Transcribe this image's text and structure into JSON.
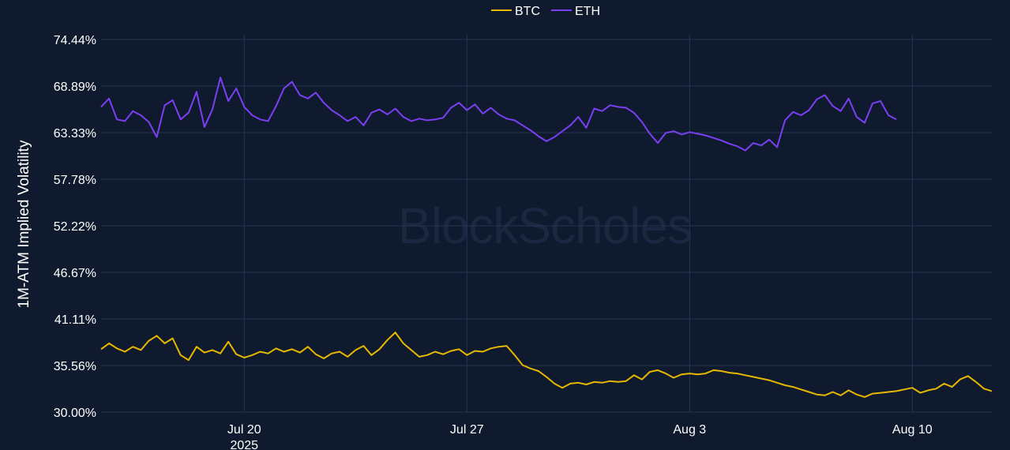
{
  "watermark": "BlockScholes",
  "chart_data": {
    "type": "line",
    "ylabel": "1M-ATM Implied Volatility",
    "ylim": [
      30.0,
      74.44
    ],
    "yticks": [
      "74.44%",
      "68.89%",
      "63.33%",
      "57.78%",
      "52.22%",
      "46.67%",
      "41.11%",
      "35.56%",
      "30.00%"
    ],
    "ytick_values": [
      74.44,
      68.89,
      63.33,
      57.78,
      52.22,
      46.67,
      41.11,
      35.56,
      30.0
    ],
    "xlim": [
      "2025-07-15T12:00",
      "2025-08-12T12:00"
    ],
    "xticks": [
      {
        "date": "2025-07-20",
        "label": "Jul 20",
        "sublabel": "2025"
      },
      {
        "date": "2025-07-27",
        "label": "Jul 27",
        "sublabel": ""
      },
      {
        "date": "2025-08-03",
        "label": "Aug 3",
        "sublabel": ""
      },
      {
        "date": "2025-08-10",
        "label": "Aug 10",
        "sublabel": ""
      }
    ],
    "grid": true,
    "legend_position": "top-center",
    "series": [
      {
        "name": "BTC",
        "color": "#e6b800",
        "points": [
          [
            "2025-07-15T12:00",
            37.5
          ],
          [
            "2025-07-15T18:00",
            38.2
          ],
          [
            "2025-07-16T00:00",
            37.6
          ],
          [
            "2025-07-16T06:00",
            37.2
          ],
          [
            "2025-07-16T12:00",
            37.8
          ],
          [
            "2025-07-16T18:00",
            37.4
          ],
          [
            "2025-07-17T00:00",
            38.5
          ],
          [
            "2025-07-17T06:00",
            39.1
          ],
          [
            "2025-07-17T12:00",
            38.2
          ],
          [
            "2025-07-17T18:00",
            38.8
          ],
          [
            "2025-07-18T00:00",
            36.8
          ],
          [
            "2025-07-18T06:00",
            36.2
          ],
          [
            "2025-07-18T12:00",
            37.8
          ],
          [
            "2025-07-18T18:00",
            37.1
          ],
          [
            "2025-07-19T00:00",
            37.4
          ],
          [
            "2025-07-19T06:00",
            37.0
          ],
          [
            "2025-07-19T12:00",
            38.4
          ],
          [
            "2025-07-19T18:00",
            36.9
          ],
          [
            "2025-07-20T00:00",
            36.5
          ],
          [
            "2025-07-20T06:00",
            36.8
          ],
          [
            "2025-07-20T12:00",
            37.2
          ],
          [
            "2025-07-20T18:00",
            37.0
          ],
          [
            "2025-07-21T00:00",
            37.6
          ],
          [
            "2025-07-21T06:00",
            37.2
          ],
          [
            "2025-07-21T12:00",
            37.5
          ],
          [
            "2025-07-21T18:00",
            37.1
          ],
          [
            "2025-07-22T00:00",
            37.8
          ],
          [
            "2025-07-22T06:00",
            36.9
          ],
          [
            "2025-07-22T12:00",
            36.4
          ],
          [
            "2025-07-22T18:00",
            37.0
          ],
          [
            "2025-07-23T00:00",
            37.2
          ],
          [
            "2025-07-23T06:00",
            36.6
          ],
          [
            "2025-07-23T12:00",
            37.4
          ],
          [
            "2025-07-23T18:00",
            37.9
          ],
          [
            "2025-07-24T00:00",
            36.8
          ],
          [
            "2025-07-24T06:00",
            37.5
          ],
          [
            "2025-07-24T12:00",
            38.6
          ],
          [
            "2025-07-24T18:00",
            39.5
          ],
          [
            "2025-07-25T00:00",
            38.2
          ],
          [
            "2025-07-25T06:00",
            37.4
          ],
          [
            "2025-07-25T12:00",
            36.6
          ],
          [
            "2025-07-25T18:00",
            36.8
          ],
          [
            "2025-07-26T00:00",
            37.2
          ],
          [
            "2025-07-26T06:00",
            36.9
          ],
          [
            "2025-07-26T12:00",
            37.3
          ],
          [
            "2025-07-26T18:00",
            37.5
          ],
          [
            "2025-07-27T00:00",
            36.8
          ],
          [
            "2025-07-27T06:00",
            37.3
          ],
          [
            "2025-07-27T12:00",
            37.2
          ],
          [
            "2025-07-27T18:00",
            37.6
          ],
          [
            "2025-07-28T00:00",
            37.8
          ],
          [
            "2025-07-28T06:00",
            37.9
          ],
          [
            "2025-07-28T12:00",
            36.8
          ],
          [
            "2025-07-28T18:00",
            35.6
          ],
          [
            "2025-07-29T00:00",
            35.2
          ],
          [
            "2025-07-29T06:00",
            34.9
          ],
          [
            "2025-07-29T12:00",
            34.2
          ],
          [
            "2025-07-29T18:00",
            33.4
          ],
          [
            "2025-07-30T00:00",
            32.9
          ],
          [
            "2025-07-30T06:00",
            33.4
          ],
          [
            "2025-07-30T12:00",
            33.5
          ],
          [
            "2025-07-30T18:00",
            33.3
          ],
          [
            "2025-07-31T00:00",
            33.6
          ],
          [
            "2025-07-31T06:00",
            33.5
          ],
          [
            "2025-07-31T12:00",
            33.7
          ],
          [
            "2025-07-31T18:00",
            33.6
          ],
          [
            "2025-08-01T00:00",
            33.7
          ],
          [
            "2025-08-01T06:00",
            34.4
          ],
          [
            "2025-08-01T12:00",
            33.9
          ],
          [
            "2025-08-01T18:00",
            34.8
          ],
          [
            "2025-08-02T00:00",
            35.0
          ],
          [
            "2025-08-02T06:00",
            34.6
          ],
          [
            "2025-08-02T12:00",
            34.1
          ],
          [
            "2025-08-02T18:00",
            34.5
          ],
          [
            "2025-08-03T00:00",
            34.6
          ],
          [
            "2025-08-03T06:00",
            34.5
          ],
          [
            "2025-08-03T12:00",
            34.6
          ],
          [
            "2025-08-03T18:00",
            35.0
          ],
          [
            "2025-08-04T00:00",
            34.9
          ],
          [
            "2025-08-04T06:00",
            34.7
          ],
          [
            "2025-08-04T12:00",
            34.6
          ],
          [
            "2025-08-04T18:00",
            34.4
          ],
          [
            "2025-08-05T00:00",
            34.2
          ],
          [
            "2025-08-05T06:00",
            34.0
          ],
          [
            "2025-08-05T12:00",
            33.8
          ],
          [
            "2025-08-05T18:00",
            33.5
          ],
          [
            "2025-08-06T00:00",
            33.2
          ],
          [
            "2025-08-06T06:00",
            33.0
          ],
          [
            "2025-08-06T12:00",
            32.7
          ],
          [
            "2025-08-06T18:00",
            32.4
          ],
          [
            "2025-08-07T00:00",
            32.1
          ],
          [
            "2025-08-07T06:00",
            32.0
          ],
          [
            "2025-08-07T12:00",
            32.4
          ],
          [
            "2025-08-07T18:00",
            32.0
          ],
          [
            "2025-08-08T00:00",
            32.6
          ],
          [
            "2025-08-08T06:00",
            32.1
          ],
          [
            "2025-08-08T12:00",
            31.8
          ],
          [
            "2025-08-08T18:00",
            32.2
          ],
          [
            "2025-08-09T00:00",
            32.3
          ],
          [
            "2025-08-09T06:00",
            32.4
          ],
          [
            "2025-08-09T12:00",
            32.5
          ],
          [
            "2025-08-09T18:00",
            32.7
          ],
          [
            "2025-08-10T00:00",
            32.9
          ],
          [
            "2025-08-10T06:00",
            32.3
          ],
          [
            "2025-08-10T12:00",
            32.6
          ],
          [
            "2025-08-10T18:00",
            32.8
          ],
          [
            "2025-08-11T00:00",
            33.4
          ],
          [
            "2025-08-11T06:00",
            33.0
          ],
          [
            "2025-08-11T12:00",
            33.9
          ],
          [
            "2025-08-11T18:00",
            34.3
          ],
          [
            "2025-08-12T00:00",
            33.6
          ],
          [
            "2025-08-12T06:00",
            32.8
          ],
          [
            "2025-08-12T12:00",
            32.5
          ]
        ]
      },
      {
        "name": "ETH",
        "color": "#7b3ff2",
        "points": [
          [
            "2025-07-15T12:00",
            66.4
          ],
          [
            "2025-07-15T18:00",
            67.4
          ],
          [
            "2025-07-16T00:00",
            64.9
          ],
          [
            "2025-07-16T06:00",
            64.7
          ],
          [
            "2025-07-16T12:00",
            65.9
          ],
          [
            "2025-07-16T18:00",
            65.4
          ],
          [
            "2025-07-17T00:00",
            64.6
          ],
          [
            "2025-07-17T06:00",
            62.8
          ],
          [
            "2025-07-17T12:00",
            66.6
          ],
          [
            "2025-07-17T18:00",
            67.2
          ],
          [
            "2025-07-18T00:00",
            64.9
          ],
          [
            "2025-07-18T06:00",
            65.7
          ],
          [
            "2025-07-18T12:00",
            68.2
          ],
          [
            "2025-07-18T18:00",
            64.0
          ],
          [
            "2025-07-19T00:00",
            66.1
          ],
          [
            "2025-07-19T06:00",
            69.9
          ],
          [
            "2025-07-19T12:00",
            67.1
          ],
          [
            "2025-07-19T18:00",
            68.6
          ],
          [
            "2025-07-20T00:00",
            66.4
          ],
          [
            "2025-07-20T06:00",
            65.4
          ],
          [
            "2025-07-20T12:00",
            64.9
          ],
          [
            "2025-07-20T18:00",
            64.7
          ],
          [
            "2025-07-21T00:00",
            66.5
          ],
          [
            "2025-07-21T06:00",
            68.6
          ],
          [
            "2025-07-21T12:00",
            69.4
          ],
          [
            "2025-07-21T18:00",
            67.8
          ],
          [
            "2025-07-22T00:00",
            67.4
          ],
          [
            "2025-07-22T06:00",
            68.1
          ],
          [
            "2025-07-22T12:00",
            66.9
          ],
          [
            "2025-07-22T18:00",
            66.0
          ],
          [
            "2025-07-23T00:00",
            65.4
          ],
          [
            "2025-07-23T06:00",
            64.7
          ],
          [
            "2025-07-23T12:00",
            65.2
          ],
          [
            "2025-07-23T18:00",
            64.2
          ],
          [
            "2025-07-24T00:00",
            65.7
          ],
          [
            "2025-07-24T06:00",
            66.1
          ],
          [
            "2025-07-24T12:00",
            65.5
          ],
          [
            "2025-07-24T18:00",
            66.2
          ],
          [
            "2025-07-25T00:00",
            65.2
          ],
          [
            "2025-07-25T06:00",
            64.7
          ],
          [
            "2025-07-25T12:00",
            65.0
          ],
          [
            "2025-07-25T18:00",
            64.8
          ],
          [
            "2025-07-26T00:00",
            64.9
          ],
          [
            "2025-07-26T06:00",
            65.1
          ],
          [
            "2025-07-26T12:00",
            66.3
          ],
          [
            "2025-07-26T18:00",
            66.9
          ],
          [
            "2025-07-27T00:00",
            66.0
          ],
          [
            "2025-07-27T06:00",
            66.7
          ],
          [
            "2025-07-27T12:00",
            65.6
          ],
          [
            "2025-07-27T18:00",
            66.3
          ],
          [
            "2025-07-28T00:00",
            65.5
          ],
          [
            "2025-07-28T06:00",
            65.0
          ],
          [
            "2025-07-28T12:00",
            64.8
          ],
          [
            "2025-07-28T18:00",
            64.2
          ],
          [
            "2025-07-29T00:00",
            63.6
          ],
          [
            "2025-07-29T06:00",
            62.9
          ],
          [
            "2025-07-29T12:00",
            62.3
          ],
          [
            "2025-07-29T18:00",
            62.8
          ],
          [
            "2025-07-30T00:00",
            63.5
          ],
          [
            "2025-07-30T06:00",
            64.2
          ],
          [
            "2025-07-30T12:00",
            65.2
          ],
          [
            "2025-07-30T18:00",
            63.9
          ],
          [
            "2025-07-31T00:00",
            66.2
          ],
          [
            "2025-07-31T06:00",
            65.9
          ],
          [
            "2025-07-31T12:00",
            66.6
          ],
          [
            "2025-07-31T18:00",
            66.4
          ],
          [
            "2025-08-01T00:00",
            66.3
          ],
          [
            "2025-08-01T06:00",
            65.7
          ],
          [
            "2025-08-01T12:00",
            64.6
          ],
          [
            "2025-08-01T18:00",
            63.2
          ],
          [
            "2025-08-02T00:00",
            62.1
          ],
          [
            "2025-08-02T06:00",
            63.3
          ],
          [
            "2025-08-02T12:00",
            63.5
          ],
          [
            "2025-08-02T18:00",
            63.1
          ],
          [
            "2025-08-03T00:00",
            63.4
          ],
          [
            "2025-08-03T06:00",
            63.2
          ],
          [
            "2025-08-03T12:00",
            63.0
          ],
          [
            "2025-08-03T18:00",
            62.7
          ],
          [
            "2025-08-04T00:00",
            62.4
          ],
          [
            "2025-08-04T06:00",
            62.0
          ],
          [
            "2025-08-04T12:00",
            61.7
          ],
          [
            "2025-08-04T18:00",
            61.2
          ],
          [
            "2025-08-05T00:00",
            62.1
          ],
          [
            "2025-08-05T06:00",
            61.8
          ],
          [
            "2025-08-05T12:00",
            62.5
          ],
          [
            "2025-08-05T18:00",
            61.6
          ],
          [
            "2025-08-06T00:00",
            64.8
          ],
          [
            "2025-08-06T06:00",
            65.8
          ],
          [
            "2025-08-06T12:00",
            65.4
          ],
          [
            "2025-08-06T18:00",
            66.0
          ],
          [
            "2025-08-07T00:00",
            67.3
          ],
          [
            "2025-08-07T06:00",
            67.8
          ],
          [
            "2025-08-07T12:00",
            66.5
          ],
          [
            "2025-08-07T18:00",
            65.9
          ],
          [
            "2025-08-08T00:00",
            67.4
          ],
          [
            "2025-08-08T06:00",
            65.2
          ],
          [
            "2025-08-08T12:00",
            64.5
          ],
          [
            "2025-08-08T18:00",
            66.8
          ],
          [
            "2025-08-09T00:00",
            67.1
          ],
          [
            "2025-08-09T06:00",
            65.4
          ],
          [
            "2025-08-09T12:00",
            64.9
          ]
        ]
      }
    ]
  }
}
